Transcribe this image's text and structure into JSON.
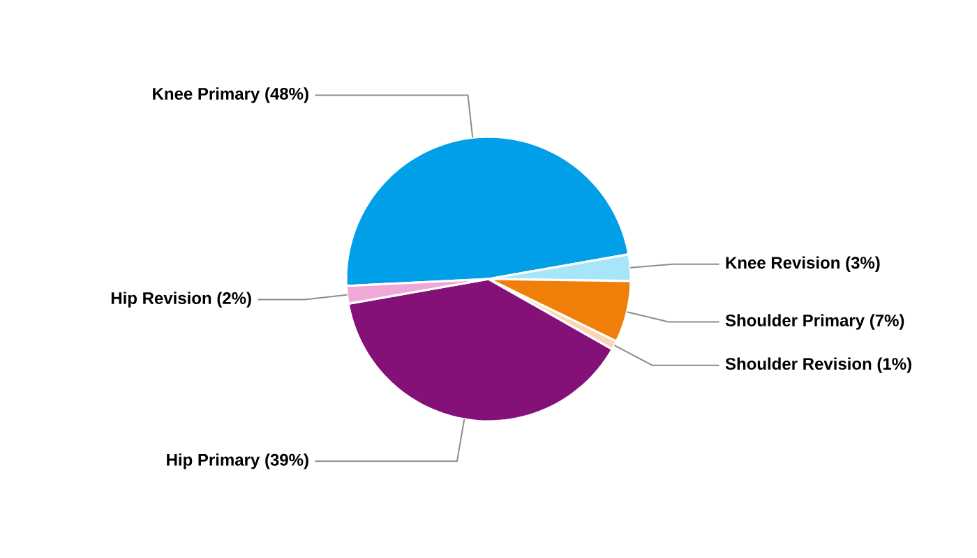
{
  "chart_data": {
    "type": "pie",
    "categories": [
      "Knee Primary",
      "Knee Revision",
      "Shoulder Primary",
      "Shoulder Revision",
      "Hip Primary",
      "Hip Revision"
    ],
    "values": [
      48,
      3,
      7,
      1,
      39,
      2
    ],
    "colors": [
      "#009fe8",
      "#a6e6f8",
      "#f07f09",
      "#fcd5b5",
      "#841178",
      "#f0a8d8"
    ],
    "value_labels": [
      "(48%)",
      "(3%)",
      "(7%)",
      "(1%)",
      "(39%)",
      "(2%)"
    ]
  }
}
